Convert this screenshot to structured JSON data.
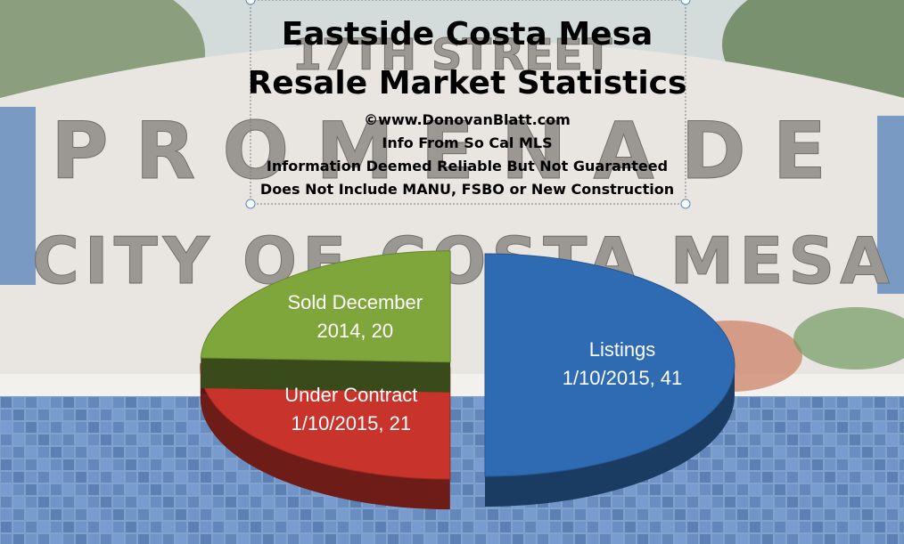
{
  "background": {
    "sign_line1": "17TH STREET",
    "sign_line2": "PROMENADE",
    "sign_line3": "CITY OF COSTA MESA"
  },
  "colors": {
    "sky": "#cfd8d9",
    "tile_blue": "#4b7fb8",
    "wall": "#e8e6e2",
    "listings": "#2f6bb3",
    "under_contract": "#c8332b",
    "sold": "#7fa63a"
  },
  "chart_data": {
    "type": "pie",
    "title": "Eastside Costa Mesa\nResale Market Statistics",
    "subtitle": [
      "©www.DonovanBlatt.com",
      "Info  From So Cal MLS",
      "Information Deemed Reliable But Not Guaranteed",
      "Does Not Include MANU, FSBO or New Construction"
    ],
    "slices": [
      {
        "category": "Listings",
        "date": "1/10/2015",
        "value": 41,
        "color": "#2f6bb3",
        "exploded": true
      },
      {
        "category": "Under Contract",
        "date": "1/10/2015",
        "value": 21,
        "color": "#c8332b",
        "exploded": false
      },
      {
        "category": "Sold December",
        "date": "2014",
        "value": 20,
        "color": "#7fa63a",
        "exploded": false
      }
    ],
    "labels": [
      [
        "Listings",
        "1/10/2015, 41"
      ],
      [
        "Under Contract",
        "1/10/2015, 21"
      ],
      [
        "Sold December",
        "2014, 20"
      ]
    ],
    "legend": "none",
    "style": "3d"
  }
}
